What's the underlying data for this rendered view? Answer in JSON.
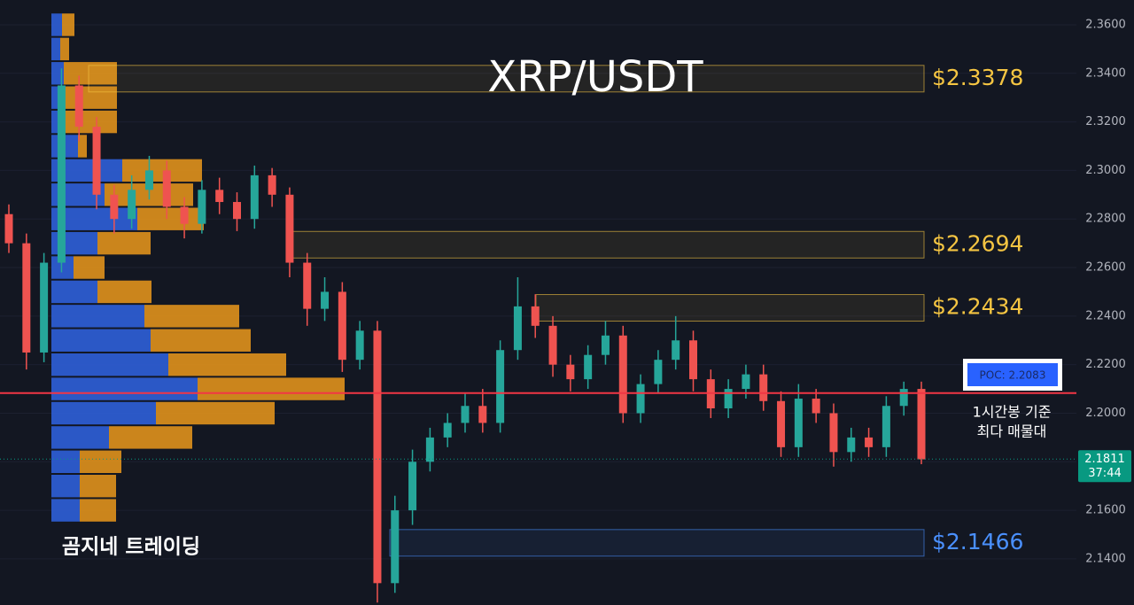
{
  "chart_data": {
    "type": "candlestick",
    "title": "XRP/USDT",
    "watermark": "곰지네 트레이딩",
    "ylim": [
      2.121,
      2.3702
    ],
    "yticks": [
      {
        "value": 2.14,
        "label": "2.1400"
      },
      {
        "value": 2.16,
        "label": "2.1600"
      },
      {
        "value": 2.18,
        "label": "2.1800"
      },
      {
        "value": 2.2,
        "label": "2.2000"
      },
      {
        "value": 2.22,
        "label": "2.2200"
      },
      {
        "value": 2.24,
        "label": "2.2400"
      },
      {
        "value": 2.26,
        "label": "2.2600"
      },
      {
        "value": 2.28,
        "label": "2.2800"
      },
      {
        "value": 2.3,
        "label": "2.3000"
      },
      {
        "value": 2.32,
        "label": "2.3200"
      },
      {
        "value": 2.34,
        "label": "2.3400"
      },
      {
        "value": 2.36,
        "label": "2.3600"
      }
    ],
    "grid": true,
    "up_color": "#26a69a",
    "down_color": "#ef5350",
    "open": [
      2.282,
      2.27,
      2.225,
      2.262,
      2.335,
      2.318,
      2.29,
      2.28,
      2.292,
      2.3,
      2.285,
      2.278,
      2.292,
      2.287,
      2.28,
      2.298,
      2.29,
      2.262,
      2.243,
      2.25,
      2.222,
      2.234,
      2.13,
      2.16,
      2.18,
      2.19,
      2.196,
      2.203,
      2.196,
      2.226,
      2.244,
      2.236,
      2.22,
      2.214,
      2.224,
      2.232,
      2.2,
      2.212,
      2.222,
      2.23,
      2.214,
      2.202,
      2.21,
      2.216,
      2.205,
      2.186,
      2.206,
      2.2,
      2.184,
      2.19,
      2.186,
      2.203,
      2.21
    ],
    "high": [
      2.286,
      2.274,
      2.266,
      2.342,
      2.339,
      2.322,
      2.294,
      2.298,
      2.306,
      2.304,
      2.289,
      2.296,
      2.297,
      2.291,
      2.302,
      2.301,
      2.293,
      2.266,
      2.256,
      2.254,
      2.238,
      2.238,
      2.166,
      2.185,
      2.194,
      2.2,
      2.208,
      2.21,
      2.23,
      2.256,
      2.249,
      2.24,
      2.224,
      2.228,
      2.238,
      2.236,
      2.216,
      2.226,
      2.24,
      2.234,
      2.218,
      2.214,
      2.22,
      2.22,
      2.209,
      2.212,
      2.21,
      2.204,
      2.194,
      2.194,
      2.207,
      2.213,
      2.213
    ],
    "low": [
      2.266,
      2.218,
      2.221,
      2.258,
      2.312,
      2.284,
      2.274,
      2.276,
      2.288,
      2.28,
      2.272,
      2.274,
      2.282,
      2.275,
      2.276,
      2.285,
      2.256,
      2.236,
      2.238,
      2.217,
      2.218,
      2.122,
      2.126,
      2.154,
      2.176,
      2.186,
      2.192,
      2.192,
      2.192,
      2.222,
      2.231,
      2.215,
      2.209,
      2.21,
      2.22,
      2.196,
      2.196,
      2.208,
      2.218,
      2.209,
      2.198,
      2.198,
      2.206,
      2.201,
      2.182,
      2.182,
      2.196,
      2.178,
      2.18,
      2.182,
      2.182,
      2.199,
      2.179
    ],
    "close": [
      2.27,
      2.225,
      2.262,
      2.335,
      2.318,
      2.29,
      2.28,
      2.292,
      2.3,
      2.285,
      2.278,
      2.292,
      2.287,
      2.28,
      2.298,
      2.29,
      2.262,
      2.243,
      2.25,
      2.222,
      2.234,
      2.13,
      2.16,
      2.18,
      2.19,
      2.196,
      2.203,
      2.196,
      2.226,
      2.244,
      2.236,
      2.22,
      2.214,
      2.224,
      2.232,
      2.2,
      2.212,
      2.222,
      2.23,
      2.214,
      2.202,
      2.21,
      2.216,
      2.205,
      2.186,
      2.206,
      2.2,
      2.184,
      2.19,
      2.186,
      2.203,
      2.21,
      2.181
    ],
    "current_price": 2.1811,
    "countdown": "37:44",
    "current_color": "#089981",
    "volume_profile": {
      "levels": [
        2.36,
        2.35,
        2.34,
        2.33,
        2.32,
        2.31,
        2.3,
        2.29,
        2.28,
        2.27,
        2.26,
        2.25,
        2.24,
        2.23,
        2.22,
        2.21,
        2.2,
        2.19,
        2.18,
        2.17,
        2.16
      ],
      "buy": [
        12,
        10,
        14,
        14,
        14,
        30,
        80,
        60,
        97,
        52,
        25,
        52,
        105,
        112,
        132,
        165,
        118,
        65,
        32,
        32,
        32
      ],
      "sell": [
        14,
        10,
        60,
        60,
        60,
        10,
        90,
        100,
        75,
        60,
        35,
        61,
        107,
        113,
        133,
        166,
        134,
        94,
        47,
        41,
        41
      ],
      "buy_color": "#2f5fd8",
      "sell_color": "#e0911c"
    },
    "levels": [
      {
        "value": 2.3378,
        "label": "$2.3378",
        "color": "#f5c542"
      },
      {
        "value": 2.2694,
        "label": "$2.2694",
        "color": "#f5c542"
      },
      {
        "value": 2.2434,
        "label": "$2.2434",
        "color": "#f5c542"
      },
      {
        "value": 2.1466,
        "label": "$2.1466",
        "color": "#4a90ff"
      }
    ],
    "poc": {
      "value": 2.2083,
      "label": "POC: 2.2083",
      "color": "#f23645"
    },
    "annotation": [
      "1시간봉 기준",
      "최다 매물대"
    ]
  }
}
